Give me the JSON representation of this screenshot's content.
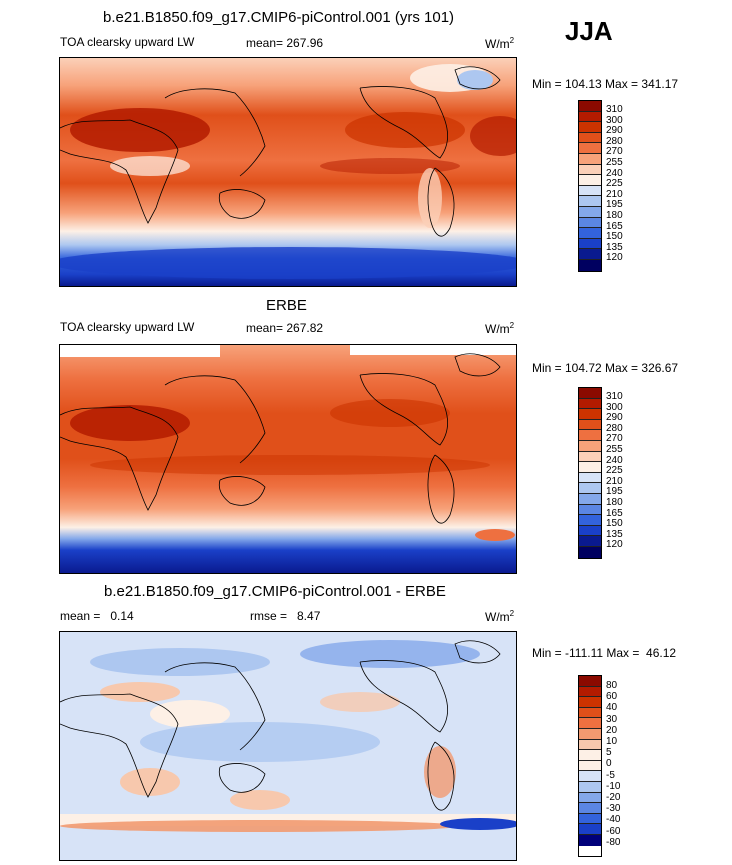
{
  "season": "JJA",
  "panels": [
    {
      "title": "b.e21.B1850.f09_g17.CMIP6-piControl.001 (yrs 101)",
      "left_label": "TOA clearsky upward LW",
      "center_label": "mean= 267.96",
      "units": "W/m",
      "units_sup": "2",
      "minmax": "Min = 104.13 Max = 341.17",
      "levels": [
        "310",
        "300",
        "290",
        "280",
        "270",
        "255",
        "240",
        "225",
        "210",
        "195",
        "180",
        "165",
        "150",
        "135",
        "120"
      ]
    },
    {
      "title": "ERBE",
      "left_label": "TOA clearsky upward LW",
      "center_label": "mean= 267.82",
      "units": "W/m",
      "units_sup": "2",
      "minmax": "Min = 104.72 Max = 326.67",
      "levels": [
        "310",
        "300",
        "290",
        "280",
        "270",
        "255",
        "240",
        "225",
        "210",
        "195",
        "180",
        "165",
        "150",
        "135",
        "120"
      ]
    },
    {
      "title": "b.e21.B1850.f09_g17.CMIP6-piControl.001 - ERBE",
      "left_label": "mean =   0.14",
      "center_label": "rmse =   8.47",
      "units": "W/m",
      "units_sup": "2",
      "minmax": "Min = -111.11 Max =  46.12",
      "levels": [
        "80",
        "60",
        "40",
        "30",
        "20",
        "10",
        "5",
        "0",
        "-5",
        "-10",
        "-20",
        "-30",
        "-40",
        "-60",
        "-80"
      ]
    }
  ],
  "colors": {
    "abs_scale": [
      "#8b0a00",
      "#b31b00",
      "#cc3300",
      "#e0501a",
      "#ee7040",
      "#f7a27a",
      "#fbd0b8",
      "#fdf0e6",
      "#d7e3f7",
      "#adc7f0",
      "#84a8ea",
      "#5b86e3",
      "#3363dc",
      "#1a40c8",
      "#0a1a8f",
      "#000060"
    ],
    "diff_scale": [
      "#8b0a00",
      "#b31b00",
      "#cc3300",
      "#e0501a",
      "#ee7040",
      "#f29a70",
      "#f7c8ad",
      "#fdf0e6",
      "#fdf0e6",
      "#d7e3f7",
      "#adc7f0",
      "#84a8ea",
      "#5b86e3",
      "#3363dc",
      "#1a40c8",
      "#00007a"
    ]
  }
}
